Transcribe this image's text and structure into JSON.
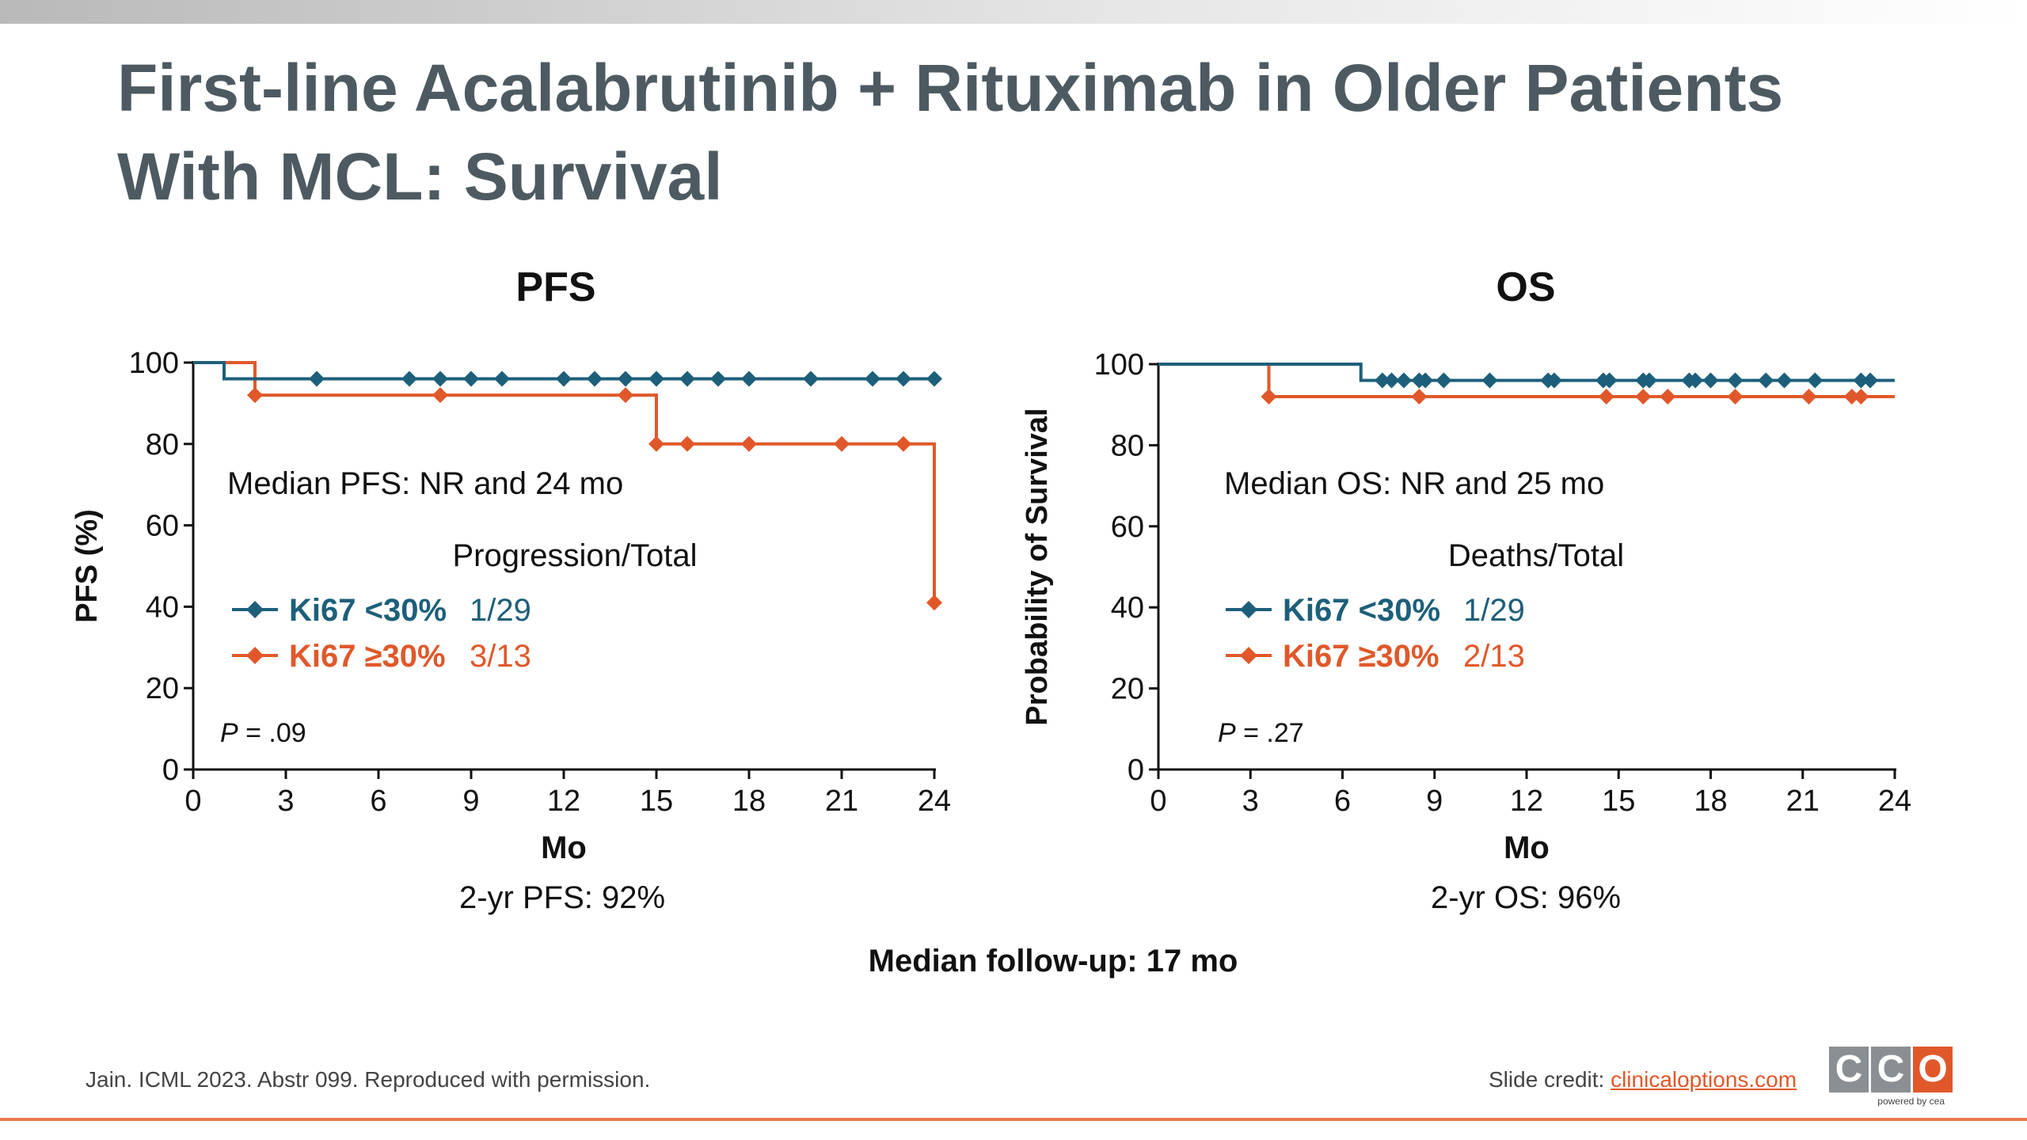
{
  "title_line1": "First-line Acalabrutinib + Rituximab in Older Patients",
  "title_line2": "With MCL: Survival",
  "colors": {
    "teal": "#1d5f7a",
    "orange": "#e0582a",
    "title": "#4d5a61"
  },
  "chart_data": [
    {
      "type": "line",
      "title": "PFS",
      "xlabel": "Mo",
      "ylabel": "PFS (%)",
      "xlim": [
        0,
        24
      ],
      "ylim": [
        0,
        100
      ],
      "xticks": [
        0,
        3,
        6,
        9,
        12,
        15,
        18,
        21,
        24
      ],
      "yticks": [
        0,
        20,
        40,
        60,
        80,
        100
      ],
      "median_text": "Median PFS: NR and 24 mo",
      "legend_header": "Progression/Total",
      "pvalue_label": "P",
      "pvalue_text": " = .09",
      "below_text": "2-yr PFS: 92%",
      "series": [
        {
          "name": "Ki67 <30%",
          "count": "1/29",
          "color": "#1d5f7a",
          "steps": [
            [
              0,
              100
            ],
            [
              1,
              100
            ],
            [
              1,
              96
            ],
            [
              24,
              96
            ]
          ],
          "censors": [
            [
              4,
              96
            ],
            [
              7,
              96
            ],
            [
              8,
              96
            ],
            [
              9,
              96
            ],
            [
              10,
              96
            ],
            [
              12,
              96
            ],
            [
              13,
              96
            ],
            [
              14,
              96
            ],
            [
              15,
              96
            ],
            [
              16,
              96
            ],
            [
              17,
              96
            ],
            [
              18,
              96
            ],
            [
              20,
              96
            ],
            [
              22,
              96
            ],
            [
              23,
              96
            ],
            [
              24,
              96
            ]
          ]
        },
        {
          "name": "Ki67 ≥30%",
          "count": "3/13",
          "color": "#e0582a",
          "steps": [
            [
              0,
              100
            ],
            [
              2,
              100
            ],
            [
              2,
              92
            ],
            [
              15,
              92
            ],
            [
              15,
              80
            ],
            [
              24,
              80
            ],
            [
              24,
              41
            ]
          ],
          "censors": [
            [
              2,
              92
            ],
            [
              8,
              92
            ],
            [
              14,
              92
            ],
            [
              15,
              80
            ],
            [
              16,
              80
            ],
            [
              18,
              80
            ],
            [
              21,
              80
            ],
            [
              23,
              80
            ],
            [
              24,
              41
            ]
          ]
        }
      ]
    },
    {
      "type": "line",
      "title": "OS",
      "xlabel": "Mo",
      "ylabel": "Probability of Survival",
      "xlim": [
        0,
        24
      ],
      "ylim": [
        0,
        100
      ],
      "xticks": [
        0,
        3,
        6,
        9,
        12,
        15,
        18,
        21,
        24
      ],
      "yticks": [
        0,
        20,
        40,
        60,
        80,
        100
      ],
      "median_text": "Median OS: NR and 25 mo",
      "legend_header": "Deaths/Total",
      "pvalue_label": "P",
      "pvalue_text": " = .27",
      "below_text": "2-yr OS: 96%",
      "series": [
        {
          "name": "Ki67 <30%",
          "count": "1/29",
          "color": "#1d5f7a",
          "steps": [
            [
              0,
              100
            ],
            [
              6.6,
              100
            ],
            [
              6.6,
              96
            ],
            [
              24,
              96
            ]
          ],
          "censors": [
            [
              7.3,
              96
            ],
            [
              7.6,
              96
            ],
            [
              8,
              96
            ],
            [
              8.5,
              96
            ],
            [
              8.7,
              96
            ],
            [
              9.3,
              96
            ],
            [
              10.8,
              96
            ],
            [
              12.7,
              96
            ],
            [
              12.9,
              96
            ],
            [
              14.5,
              96
            ],
            [
              14.7,
              96
            ],
            [
              15.8,
              96
            ],
            [
              16,
              96
            ],
            [
              17.3,
              96
            ],
            [
              17.5,
              96
            ],
            [
              18,
              96
            ],
            [
              18.8,
              96
            ],
            [
              19.8,
              96
            ],
            [
              20.4,
              96
            ],
            [
              21.4,
              96
            ],
            [
              22.9,
              96
            ],
            [
              23.2,
              96
            ]
          ]
        },
        {
          "name": "Ki67 ≥30%",
          "count": "2/13",
          "color": "#e0582a",
          "steps": [
            [
              0,
              100
            ],
            [
              3.6,
              100
            ],
            [
              3.6,
              92
            ],
            [
              24,
              92
            ]
          ],
          "censors": [
            [
              3.6,
              92
            ],
            [
              8.5,
              92
            ],
            [
              14.6,
              92
            ],
            [
              15.8,
              92
            ],
            [
              16.6,
              92
            ],
            [
              18.8,
              92
            ],
            [
              21.2,
              92
            ],
            [
              22.6,
              92
            ],
            [
              22.9,
              92
            ]
          ]
        }
      ]
    }
  ],
  "followup": "Median follow-up: 17 mo",
  "footer_source": "Jain. ICML 2023. Abstr 099. Reproduced with permission.",
  "footer_credit_label": "Slide credit: ",
  "footer_credit_link": "clinicaloptions.com",
  "logo_letters": [
    "C",
    "C",
    "O"
  ],
  "logo_sub": "powered by cea"
}
